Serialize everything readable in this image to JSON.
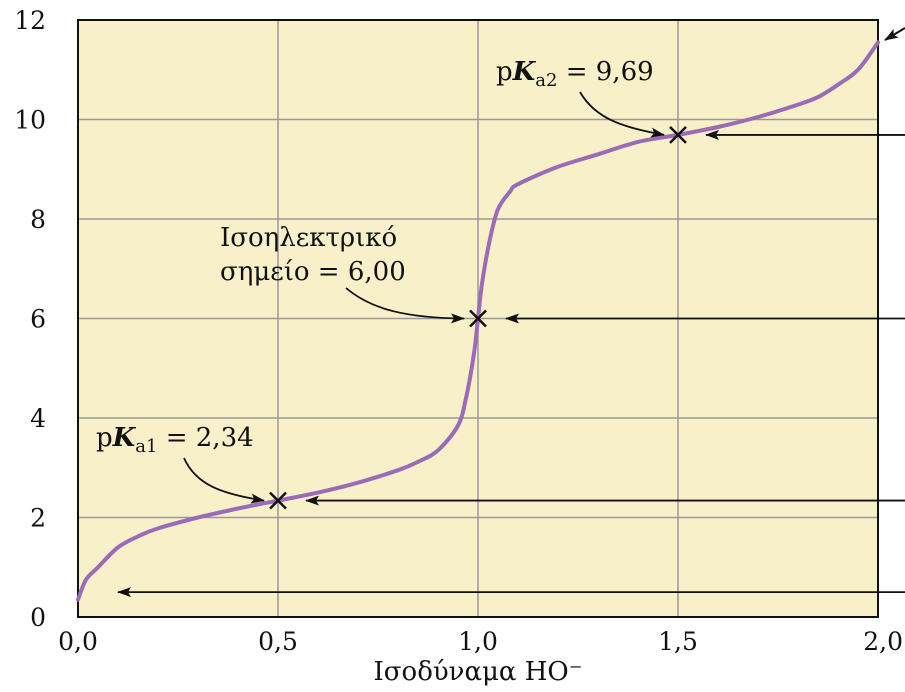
{
  "chart_data": {
    "type": "line",
    "xlabel": "Ισοδύναμα HO⁻",
    "ylabel": "",
    "xlim": [
      0,
      2
    ],
    "ylim": [
      0,
      12
    ],
    "x_ticks": [
      "0,0",
      "0,5",
      "1,0",
      "1,5",
      "2,0"
    ],
    "y_ticks": [
      "0",
      "2",
      "4",
      "6",
      "8",
      "10",
      "12"
    ],
    "grid": true,
    "colors": {
      "background": "#f8f0c8",
      "curve": "#9b6bb8",
      "grid": "#999999",
      "text": "#111111"
    },
    "series": [
      {
        "x": [
          0.0,
          0.02,
          0.05,
          0.1,
          0.15,
          0.2,
          0.3,
          0.4,
          0.5,
          0.6,
          0.7,
          0.8,
          0.85,
          0.9,
          0.95,
          0.97,
          0.99,
          1.0,
          1.01,
          1.03,
          1.05,
          1.08,
          1.1,
          1.2,
          1.3,
          1.4,
          1.5,
          1.6,
          1.7,
          1.8,
          1.85,
          1.9,
          1.95,
          2.0
        ],
        "y": [
          0.35,
          0.75,
          1.0,
          1.4,
          1.62,
          1.78,
          2.0,
          2.18,
          2.34,
          2.5,
          2.7,
          2.95,
          3.12,
          3.35,
          3.85,
          4.4,
          5.3,
          6.0,
          6.7,
          7.6,
          8.2,
          8.55,
          8.7,
          9.05,
          9.3,
          9.55,
          9.69,
          9.85,
          10.05,
          10.3,
          10.45,
          10.7,
          11.0,
          11.55
        ]
      }
    ],
    "annotations": [
      {
        "label": "pK",
        "sub": "a1",
        "value": "= 2,34",
        "x": 0.5,
        "y": 2.34
      },
      {
        "line1": "Ισοηλεκτρικό",
        "line2": "σημείο = 6,00",
        "x": 1.0,
        "y": 6.0
      },
      {
        "label": "pK",
        "sub": "a2",
        "value": "= 9,69",
        "x": 1.5,
        "y": 9.69
      }
    ],
    "arrow_levels": [
      0.5,
      2.34,
      6.0,
      9.69
    ]
  }
}
